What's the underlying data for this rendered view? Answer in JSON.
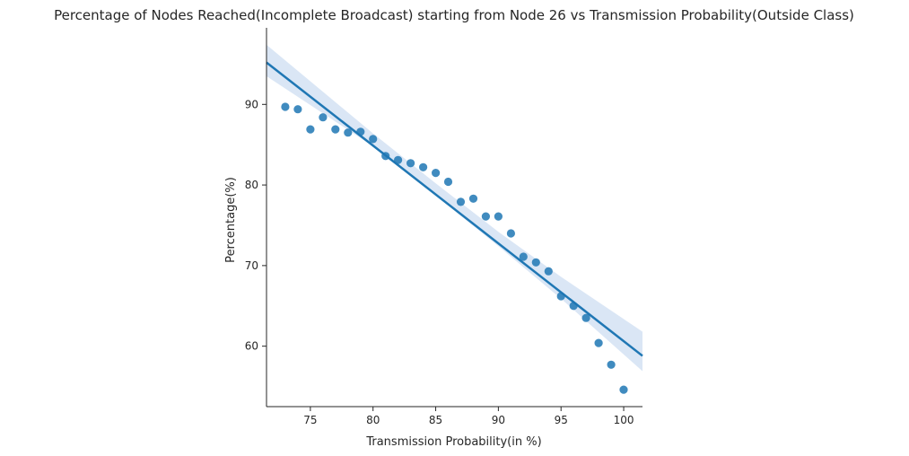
{
  "chart_data": {
    "type": "scatter",
    "title": "Percentage of Nodes Reached(Incomplete Broadcast) starting from Node 26 vs Transmission Probability(Outside Class)",
    "xlabel": "Transmission Probability(in %)",
    "ylabel": "Percentage(%)",
    "xlim": [
      71.5,
      101.5
    ],
    "ylim": [
      52.5,
      99.5
    ],
    "xticks": [
      75,
      80,
      85,
      90,
      95,
      100
    ],
    "yticks": [
      60,
      70,
      80,
      90
    ],
    "grid": false,
    "legend": "none",
    "colors": {
      "points": "#1f77b4",
      "line": "#1f77b4",
      "band": "#aec7e8"
    },
    "series": [
      {
        "x": [
          73,
          74,
          75,
          76,
          77,
          78,
          79,
          80,
          81,
          82,
          83,
          84,
          85,
          86,
          87,
          88,
          89,
          90,
          91,
          92,
          93,
          94,
          95,
          96,
          97,
          98,
          99,
          100
        ],
        "y": [
          89.7,
          89.4,
          86.9,
          88.4,
          86.9,
          86.5,
          86.6,
          85.7,
          83.6,
          83.1,
          82.7,
          82.2,
          81.5,
          80.4,
          77.9,
          78.3,
          76.1,
          76.1,
          74.0,
          71.1,
          70.4,
          69.3,
          66.2,
          65.0,
          63.5,
          60.4,
          57.7,
          54.6
        ]
      }
    ],
    "regression": {
      "line": [
        [
          71.5,
          95.2
        ],
        [
          101.5,
          58.8
        ]
      ],
      "ci_upper": [
        [
          71.5,
          97.4
        ],
        [
          80,
          86.4
        ],
        [
          85,
          80.2
        ],
        [
          90,
          74.2
        ],
        [
          95,
          68.6
        ],
        [
          101.5,
          61.8
        ]
      ],
      "ci_lower": [
        [
          71.5,
          93.5
        ],
        [
          80,
          84.8
        ],
        [
          85,
          78.7
        ],
        [
          90,
          72.4
        ],
        [
          95,
          65.9
        ],
        [
          101.5,
          56.9
        ]
      ]
    }
  }
}
